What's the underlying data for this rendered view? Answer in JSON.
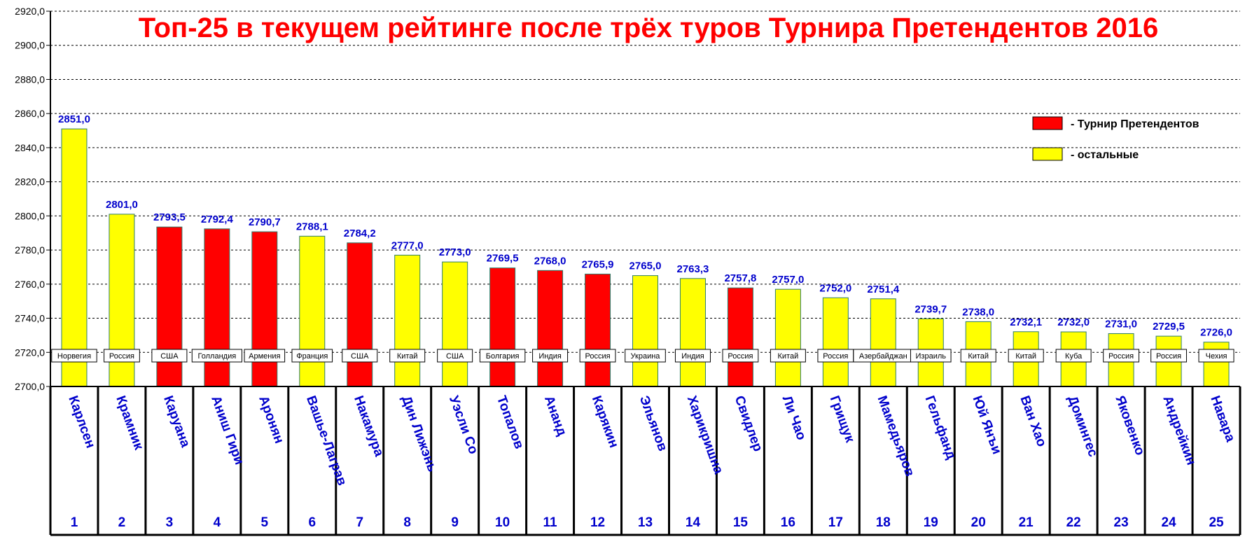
{
  "chart_data": {
    "type": "bar",
    "title": "Топ-25 в текущем рейтинге после трёх туров Турнира Претендентов 2016",
    "ylim": [
      2700,
      2920
    ],
    "ytick_step": 20,
    "yticks": [
      "2700,0",
      "2720,0",
      "2740,0",
      "2760,0",
      "2780,0",
      "2800,0",
      "2820,0",
      "2840,0",
      "2860,0",
      "2880,0",
      "2900,0",
      "2920,0"
    ],
    "grid": true,
    "legend_position": "top-right",
    "legend": [
      {
        "label": "- Турнир Претендентов",
        "color": "#ff0000"
      },
      {
        "label": "- остальные",
        "color": "#ffff00"
      }
    ],
    "bars": [
      {
        "rank": "1",
        "name": "Карлсен",
        "country": "Норвегия",
        "value": 2851.0,
        "label": "2851,0",
        "candidate": false
      },
      {
        "rank": "2",
        "name": "Крамник",
        "country": "Россия",
        "value": 2801.0,
        "label": "2801,0",
        "candidate": false
      },
      {
        "rank": "3",
        "name": "Каруана",
        "country": "США",
        "value": 2793.5,
        "label": "2793,5",
        "candidate": true
      },
      {
        "rank": "4",
        "name": "Аниш Гири",
        "country": "Голландия",
        "value": 2792.4,
        "label": "2792,4",
        "candidate": true
      },
      {
        "rank": "5",
        "name": "Аронян",
        "country": "Армения",
        "value": 2790.7,
        "label": "2790,7",
        "candidate": true
      },
      {
        "rank": "6",
        "name": "Вашье-Лаграв",
        "country": "Франция",
        "value": 2788.1,
        "label": "2788,1",
        "candidate": false
      },
      {
        "rank": "7",
        "name": "Накамура",
        "country": "США",
        "value": 2784.2,
        "label": "2784,2",
        "candidate": true
      },
      {
        "rank": "8",
        "name": "Дин Лижэнь",
        "country": "Китай",
        "value": 2777.0,
        "label": "2777,0",
        "candidate": false
      },
      {
        "rank": "9",
        "name": "Уэсли Со",
        "country": "США",
        "value": 2773.0,
        "label": "2773,0",
        "candidate": false
      },
      {
        "rank": "10",
        "name": "Топалов",
        "country": "Болгария",
        "value": 2769.5,
        "label": "2769,5",
        "candidate": true
      },
      {
        "rank": "11",
        "name": "Ананд",
        "country": "Индия",
        "value": 2768.0,
        "label": "2768,0",
        "candidate": true
      },
      {
        "rank": "12",
        "name": "Карякин",
        "country": "Россия",
        "value": 2765.9,
        "label": "2765,9",
        "candidate": true
      },
      {
        "rank": "13",
        "name": "Эльянов",
        "country": "Украина",
        "value": 2765.0,
        "label": "2765,0",
        "candidate": false
      },
      {
        "rank": "14",
        "name": "Харикришна",
        "country": "Индия",
        "value": 2763.3,
        "label": "2763,3",
        "candidate": false
      },
      {
        "rank": "15",
        "name": "Свидлер",
        "country": "Россия",
        "value": 2757.8,
        "label": "2757,8",
        "candidate": true
      },
      {
        "rank": "16",
        "name": "Ли Чао",
        "country": "Китай",
        "value": 2757.0,
        "label": "2757,0",
        "candidate": false
      },
      {
        "rank": "17",
        "name": "Грищук",
        "country": "Россия",
        "value": 2752.0,
        "label": "2752,0",
        "candidate": false
      },
      {
        "rank": "18",
        "name": "Мамедьяров",
        "country": "Азербайджан",
        "value": 2751.4,
        "label": "2751,4",
        "candidate": false
      },
      {
        "rank": "19",
        "name": "Гельфанд",
        "country": "Израиль",
        "value": 2739.7,
        "label": "2739,7",
        "candidate": false
      },
      {
        "rank": "20",
        "name": "Юй Янъи",
        "country": "Китай",
        "value": 2738.0,
        "label": "2738,0",
        "candidate": false
      },
      {
        "rank": "21",
        "name": "Ван Хао",
        "country": "Китай",
        "value": 2732.1,
        "label": "2732,1",
        "candidate": false
      },
      {
        "rank": "22",
        "name": "Домингес",
        "country": "Куба",
        "value": 2732.0,
        "label": "2732,0",
        "candidate": false
      },
      {
        "rank": "23",
        "name": "Яковенко",
        "country": "Россия",
        "value": 2731.0,
        "label": "2731,0",
        "candidate": false
      },
      {
        "rank": "24",
        "name": "Андрейкин",
        "country": "Россия",
        "value": 2729.5,
        "label": "2729,5",
        "candidate": false
      },
      {
        "rank": "25",
        "name": "Навара",
        "country": "Чехия",
        "value": 2726.0,
        "label": "2726,0",
        "candidate": false
      }
    ]
  },
  "colors": {
    "candidate": "#ff0000",
    "other": "#ffff00",
    "bar_stroke": "#2e7d6b",
    "label_text": "#0000cc",
    "title": "#ff0000"
  }
}
